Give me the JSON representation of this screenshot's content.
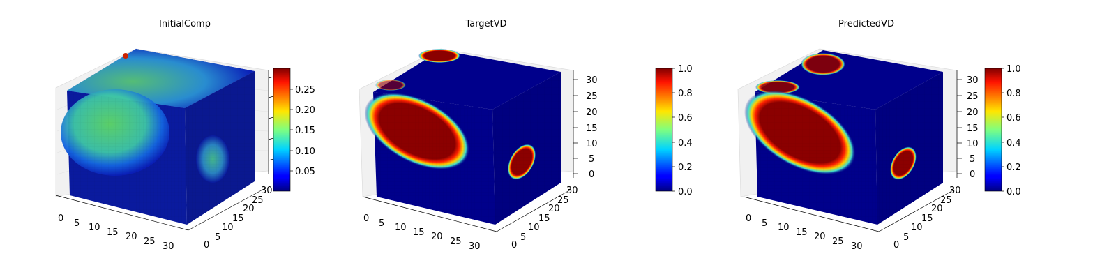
{
  "chart_data": [
    {
      "type": "heatmap",
      "plot": "3d-voxels",
      "title": "InitialComp",
      "x_ticks": [
        0,
        5,
        10,
        15,
        20,
        25,
        30
      ],
      "y_ticks": [
        0,
        5,
        10,
        15,
        20,
        25,
        30
      ],
      "z_ticks": [],
      "xlim": [
        0,
        32
      ],
      "ylim": [
        0,
        32
      ],
      "zlim": [
        0,
        32
      ],
      "colormap": "jet",
      "colorbar": {
        "range": [
          0.01,
          0.29
        ],
        "ticks": [
          "0.05",
          "0.10",
          "0.15",
          "0.20",
          "0.25"
        ]
      },
      "colors": {
        "background": "#000080",
        "blob": "#66dd66",
        "hot": "#cc0000"
      }
    },
    {
      "type": "heatmap",
      "plot": "3d-voxels",
      "title": "TargetVD",
      "x_ticks": [
        0,
        5,
        10,
        15,
        20,
        25,
        30
      ],
      "y_ticks": [
        0,
        5,
        10,
        15,
        20,
        25,
        30
      ],
      "z_ticks": [
        0,
        5,
        10,
        15,
        20,
        25,
        30
      ],
      "xlim": [
        0,
        32
      ],
      "ylim": [
        0,
        32
      ],
      "zlim": [
        0,
        32
      ],
      "colormap": "jet",
      "colorbar": {
        "range": [
          0.0,
          1.0
        ],
        "ticks": [
          "0.0",
          "0.2",
          "0.4",
          "0.6",
          "0.8",
          "1.0"
        ]
      },
      "colors": {
        "background": "#000080",
        "core": "#8b0000"
      }
    },
    {
      "type": "heatmap",
      "plot": "3d-voxels",
      "title": "PredictedVD",
      "x_ticks": [
        0,
        5,
        10,
        15,
        20,
        25,
        30
      ],
      "y_ticks": [
        0,
        5,
        10,
        15,
        20,
        25,
        30
      ],
      "z_ticks": [
        0,
        5,
        10,
        15,
        20,
        25,
        30
      ],
      "xlim": [
        0,
        32
      ],
      "ylim": [
        0,
        32
      ],
      "zlim": [
        0,
        32
      ],
      "colormap": "jet",
      "colorbar": {
        "range": [
          0.0,
          1.0
        ],
        "ticks": [
          "0.0",
          "0.2",
          "0.4",
          "0.6",
          "0.8",
          "1.0"
        ]
      },
      "colors": {
        "background": "#000080",
        "core": "#8b0000"
      }
    }
  ]
}
